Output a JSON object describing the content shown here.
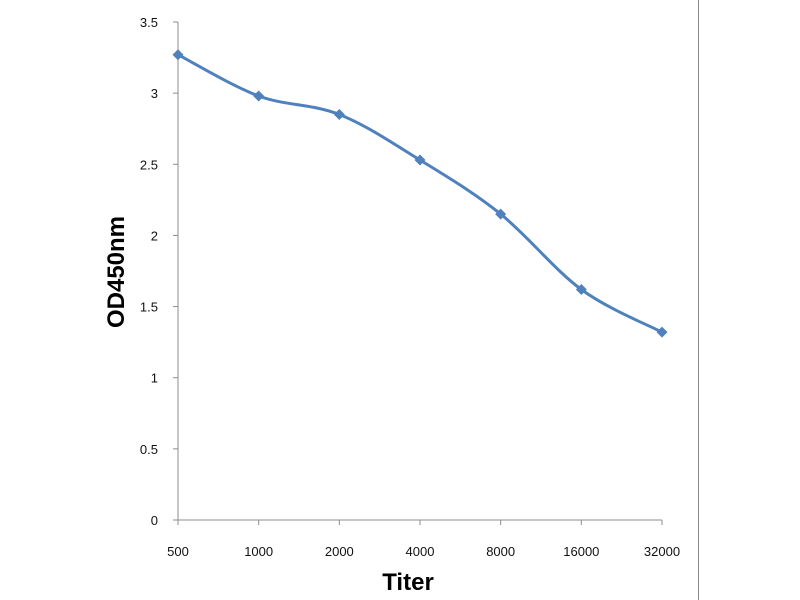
{
  "chart_data": {
    "type": "line",
    "title": "",
    "xlabel": "Titer",
    "ylabel": "OD450nm",
    "categories": [
      "500",
      "1000",
      "2000",
      "4000",
      "8000",
      "16000",
      "32000"
    ],
    "series": [
      {
        "values": [
          3.27,
          2.98,
          2.85,
          2.53,
          2.15,
          1.62,
          1.32
        ],
        "color": "#4F81BD",
        "marker": "diamond",
        "smooth": true
      }
    ],
    "ylim": [
      0,
      3.5
    ],
    "yticks": [
      "0",
      "0.5",
      "1",
      "1.5",
      "2",
      "2.5",
      "3",
      "3.5"
    ],
    "grid": false,
    "legend": "none"
  }
}
